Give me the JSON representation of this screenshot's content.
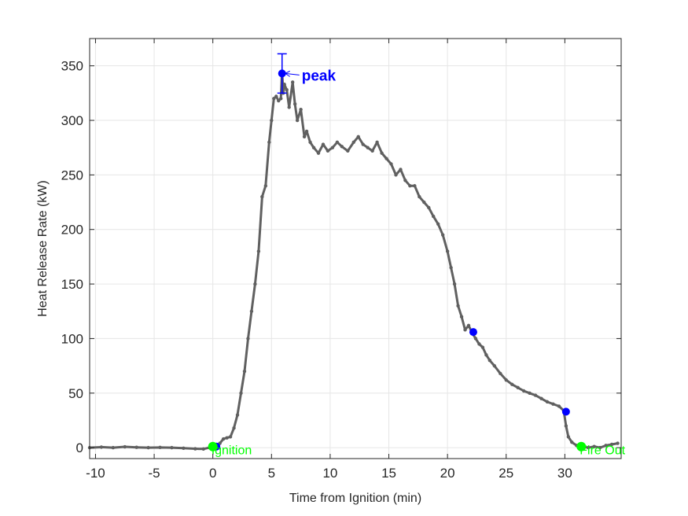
{
  "chart_data": {
    "type": "line",
    "xlabel": "Time from Ignition (min)",
    "ylabel": "Heat Release Rate (kW)",
    "xlim": [
      -10.5,
      34.8
    ],
    "ylim": [
      -10,
      375
    ],
    "xticks": [
      -10,
      -5,
      0,
      5,
      10,
      15,
      20,
      25,
      30
    ],
    "yticks": [
      0,
      50,
      100,
      150,
      200,
      250,
      300,
      350
    ],
    "grid": true,
    "colors": {
      "series": "#606060",
      "marker": "#0000ff",
      "event": "#00ff00",
      "axis": "#262626",
      "grid": "#e6e6e6"
    },
    "series": [
      {
        "x": [
          -10.5,
          -9.5,
          -8.5,
          -7.5,
          -6.5,
          -5.5,
          -4.5,
          -3.5,
          -2.5,
          -1.5,
          -0.8,
          -0.3,
          0,
          0.3,
          0.6,
          0.9,
          1.2,
          1.5,
          1.8,
          2.1,
          2.4,
          2.7,
          3.0,
          3.3,
          3.6,
          3.9,
          4.2,
          4.5,
          4.8,
          5.0,
          5.2,
          5.4,
          5.6,
          5.8,
          5.9,
          6.0,
          6.1,
          6.3,
          6.5,
          6.8,
          7.0,
          7.2,
          7.5,
          7.8,
          8.0,
          8.3,
          8.6,
          9.0,
          9.4,
          9.8,
          10.2,
          10.6,
          11.0,
          11.5,
          12.0,
          12.4,
          12.8,
          13.2,
          13.6,
          14.0,
          14.4,
          14.8,
          15.2,
          15.6,
          16.0,
          16.4,
          16.8,
          17.2,
          17.6,
          18.0,
          18.4,
          18.8,
          19.2,
          19.6,
          20.0,
          20.3,
          20.6,
          20.9,
          21.2,
          21.5,
          21.8,
          22.1,
          22.4,
          22.7,
          23.0,
          23.3,
          23.6,
          24.0,
          24.5,
          25.0,
          25.5,
          26.0,
          26.5,
          27.0,
          27.5,
          28.0,
          28.5,
          29.0,
          29.5,
          29.9,
          30.1,
          30.3,
          30.6,
          31.0,
          31.5,
          32.0,
          32.5,
          33.0,
          33.5,
          34.0,
          34.5
        ],
        "y": [
          0,
          0.5,
          0,
          0.8,
          0.3,
          0,
          0.2,
          0,
          -0.5,
          -1,
          -1.2,
          0,
          1,
          2,
          4,
          8,
          9,
          10,
          18,
          30,
          50,
          70,
          100,
          125,
          150,
          180,
          230,
          240,
          280,
          300,
          320,
          322,
          318,
          320,
          345,
          325,
          333,
          328,
          312,
          335,
          315,
          300,
          310,
          285,
          290,
          280,
          275,
          270,
          278,
          272,
          275,
          280,
          276,
          272,
          280,
          285,
          278,
          275,
          272,
          280,
          270,
          265,
          260,
          250,
          255,
          245,
          240,
          240,
          230,
          225,
          220,
          212,
          205,
          195,
          180,
          165,
          150,
          130,
          120,
          108,
          112,
          105,
          100,
          95,
          92,
          85,
          80,
          75,
          68,
          62,
          58,
          55,
          52,
          50,
          48,
          45,
          42,
          40,
          38,
          34,
          20,
          10,
          5,
          2,
          1,
          0,
          1,
          0,
          2,
          3,
          4
        ]
      }
    ],
    "markers": [
      {
        "x": 0.3,
        "y": 1
      },
      {
        "x": 5.9,
        "y": 343
      },
      {
        "x": 22.2,
        "y": 106
      },
      {
        "x": 30.1,
        "y": 33
      }
    ],
    "errorbar": {
      "x": 5.9,
      "y": 343,
      "low": 325,
      "high": 361
    },
    "annotations": [
      {
        "x": 0,
        "y": 1,
        "label": "Ignition",
        "color": "green"
      },
      {
        "x": 31.4,
        "y": 1,
        "label": "Fire Out",
        "color": "green"
      },
      {
        "x": 5.9,
        "y": 343,
        "label": "peak",
        "color": "blue"
      }
    ]
  }
}
